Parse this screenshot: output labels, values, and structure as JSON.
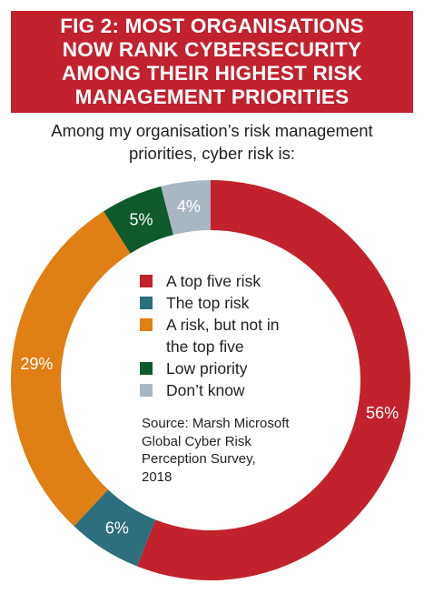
{
  "banner": {
    "lines": [
      "FIG 2: MOST ORGANISATIONS",
      "NOW RANK CYBERSECURITY",
      "AMONG THEIR HIGHEST RISK",
      "MANAGEMENT PRIORITIES"
    ],
    "color": "#c1222c"
  },
  "subtitle": {
    "lines": [
      "Among my organisation’s risk management",
      "priorities, cyber risk is:"
    ]
  },
  "legend": [
    {
      "label": "A top five risk",
      "color": "#c1222c"
    },
    {
      "label": "The top risk",
      "color": "#2d6f7c"
    },
    {
      "label": "A risk, but not in the top five",
      "color": "#e07f13"
    },
    {
      "label": "Low priority",
      "color": "#0e5a2c"
    },
    {
      "label": "Don’t know",
      "color": "#a9b7c3"
    }
  ],
  "source": {
    "lines": [
      "Source:  Marsh Microsoft",
      "Global Cyber Risk",
      "Perception Survey,",
      "2018"
    ]
  },
  "chart_data": {
    "type": "pie",
    "style": "donut",
    "title": "FIG 2: MOST ORGANISATIONS NOW RANK CYBERSECURITY AMONG THEIR HIGHEST RISK MANAGEMENT PRIORITIES",
    "subtitle": "Among my organisation’s risk management priorities, cyber risk is:",
    "categories": [
      "A top five risk",
      "The top risk",
      "A risk, but not in the top five",
      "Low priority",
      "Don’t know"
    ],
    "values": [
      56,
      6,
      29,
      5,
      4
    ],
    "labels": [
      "56%",
      "6%",
      "29%",
      "5%",
      "4%"
    ],
    "colors": [
      "#c1222c",
      "#2d6f7c",
      "#e07f13",
      "#0e5a2c",
      "#a9b7c3"
    ],
    "legend": "center"
  }
}
